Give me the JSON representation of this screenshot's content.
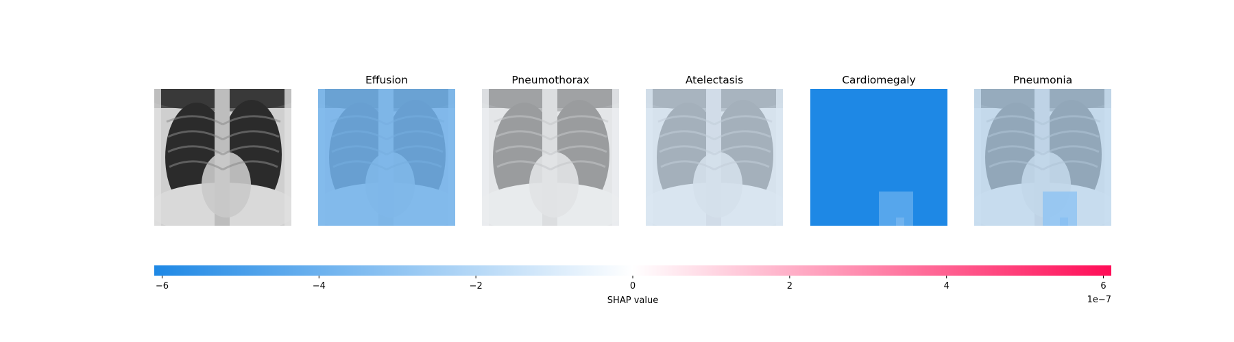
{
  "chart_data": {
    "type": "heatmap",
    "kind": "SHAP image explanation",
    "original_image": "chest x-ray",
    "panels": [
      {
        "title": "",
        "content": "input-image"
      },
      {
        "title": "Effusion",
        "content": "shap-map",
        "shap_base": -3.8e-07,
        "overlay_opacity": 0.15
      },
      {
        "title": "Pneumothorax",
        "content": "shap-map",
        "shap_base": -2.5e-08,
        "overlay_opacity": 0.45
      },
      {
        "title": "Atelectasis",
        "content": "shap-map",
        "shap_base": -1e-07,
        "overlay_opacity": 0.3
      },
      {
        "title": "Cardiomegaly",
        "content": "shap-map",
        "shap_base": -6.1e-07,
        "overlay_opacity": 0.0,
        "patch": {
          "shap_value": -4.3e-07,
          "sub_value": -3.4e-07
        }
      },
      {
        "title": "Pneumonia",
        "content": "shap-map",
        "shap_base": -1.7e-07,
        "overlay_opacity": 0.3,
        "patch": {
          "shap_value": -3e-07,
          "sub_value": -3.4e-07
        }
      }
    ],
    "colorbar": {
      "vmin": -6.1e-07,
      "vmax": 6.1e-07,
      "ticks": [
        -6,
        -4,
        -2,
        0,
        2,
        4,
        6
      ],
      "tick_labels": [
        "−6",
        "−4",
        "−2",
        "0",
        "2",
        "4",
        "6"
      ],
      "scale_label": "1e−7",
      "xlabel": "SHAP value",
      "colors": {
        "negative": "#1E88E5",
        "zero": "#FFFFFF",
        "positive": "#FF0D57"
      }
    }
  }
}
